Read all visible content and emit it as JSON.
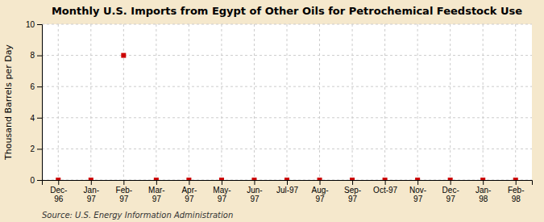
{
  "chart_data": {
    "type": "scatter",
    "title": "Monthly U.S. Imports from Egypt of Other Oils for Petrochemical Feedstock Use",
    "ylabel": "Thousand Barrels per Day",
    "source": "Source: U.S. Energy Information Administration",
    "categories": [
      "Dec-\n96",
      "Jan-\n97",
      "Feb-\n97",
      "Mar-\n97",
      "Apr-\n97",
      "May-\n97",
      "Jun-\n97",
      "Jul-97",
      "Aug-\n97",
      "Sep-\n97",
      "Oct-97",
      "Nov-\n97",
      "Dec-\n97",
      "Jan-\n98",
      "Feb-\n98"
    ],
    "values": [
      0,
      0,
      8,
      0,
      0,
      0,
      0,
      0,
      0,
      0,
      0,
      0,
      0,
      0,
      0
    ],
    "color": "#cc0000",
    "marker": "square",
    "ylim": [
      0,
      10
    ],
    "yticks": [
      0,
      2,
      4,
      6,
      8,
      10
    ],
    "grid": true
  }
}
